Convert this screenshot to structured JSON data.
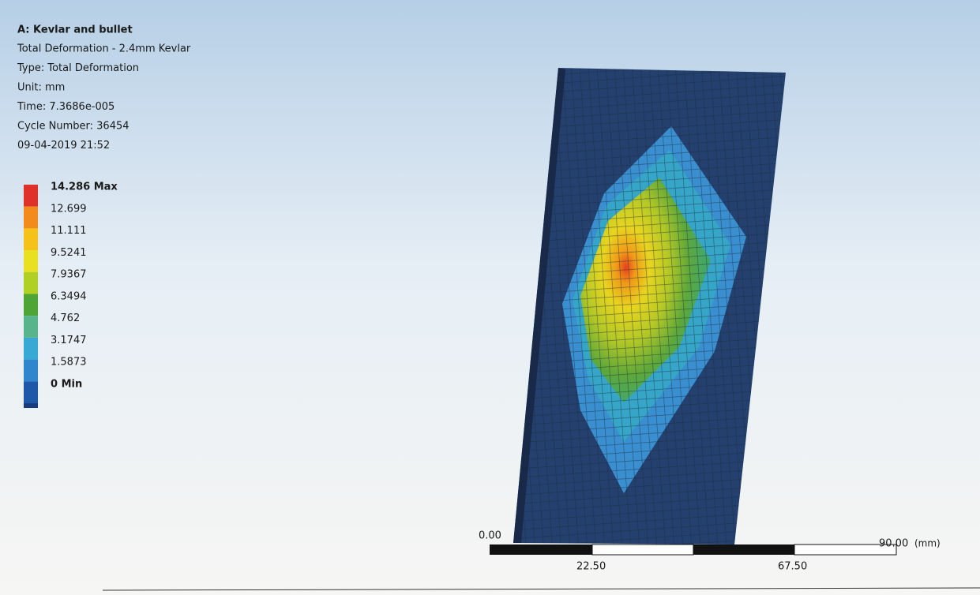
{
  "header": {
    "title": "A: Kevlar and bullet",
    "lines": [
      "Total Deformation - 2.4mm Kevlar",
      "Type: Total Deformation",
      "Unit: mm",
      "Time: 7.3686e-005",
      "Cycle Number: 36454",
      "09-04-2019 21:52"
    ]
  },
  "legend": {
    "levels": [
      "14.286 Max",
      "12.699",
      "11.111",
      "9.5241",
      "7.9367",
      "6.3494",
      "4.762",
      "3.1747",
      "1.5873",
      "0 Min"
    ]
  },
  "scale_bar": {
    "start": "0.00",
    "end": "90.00",
    "unit": "(mm)",
    "marks": [
      "22.50",
      "67.50"
    ]
  }
}
